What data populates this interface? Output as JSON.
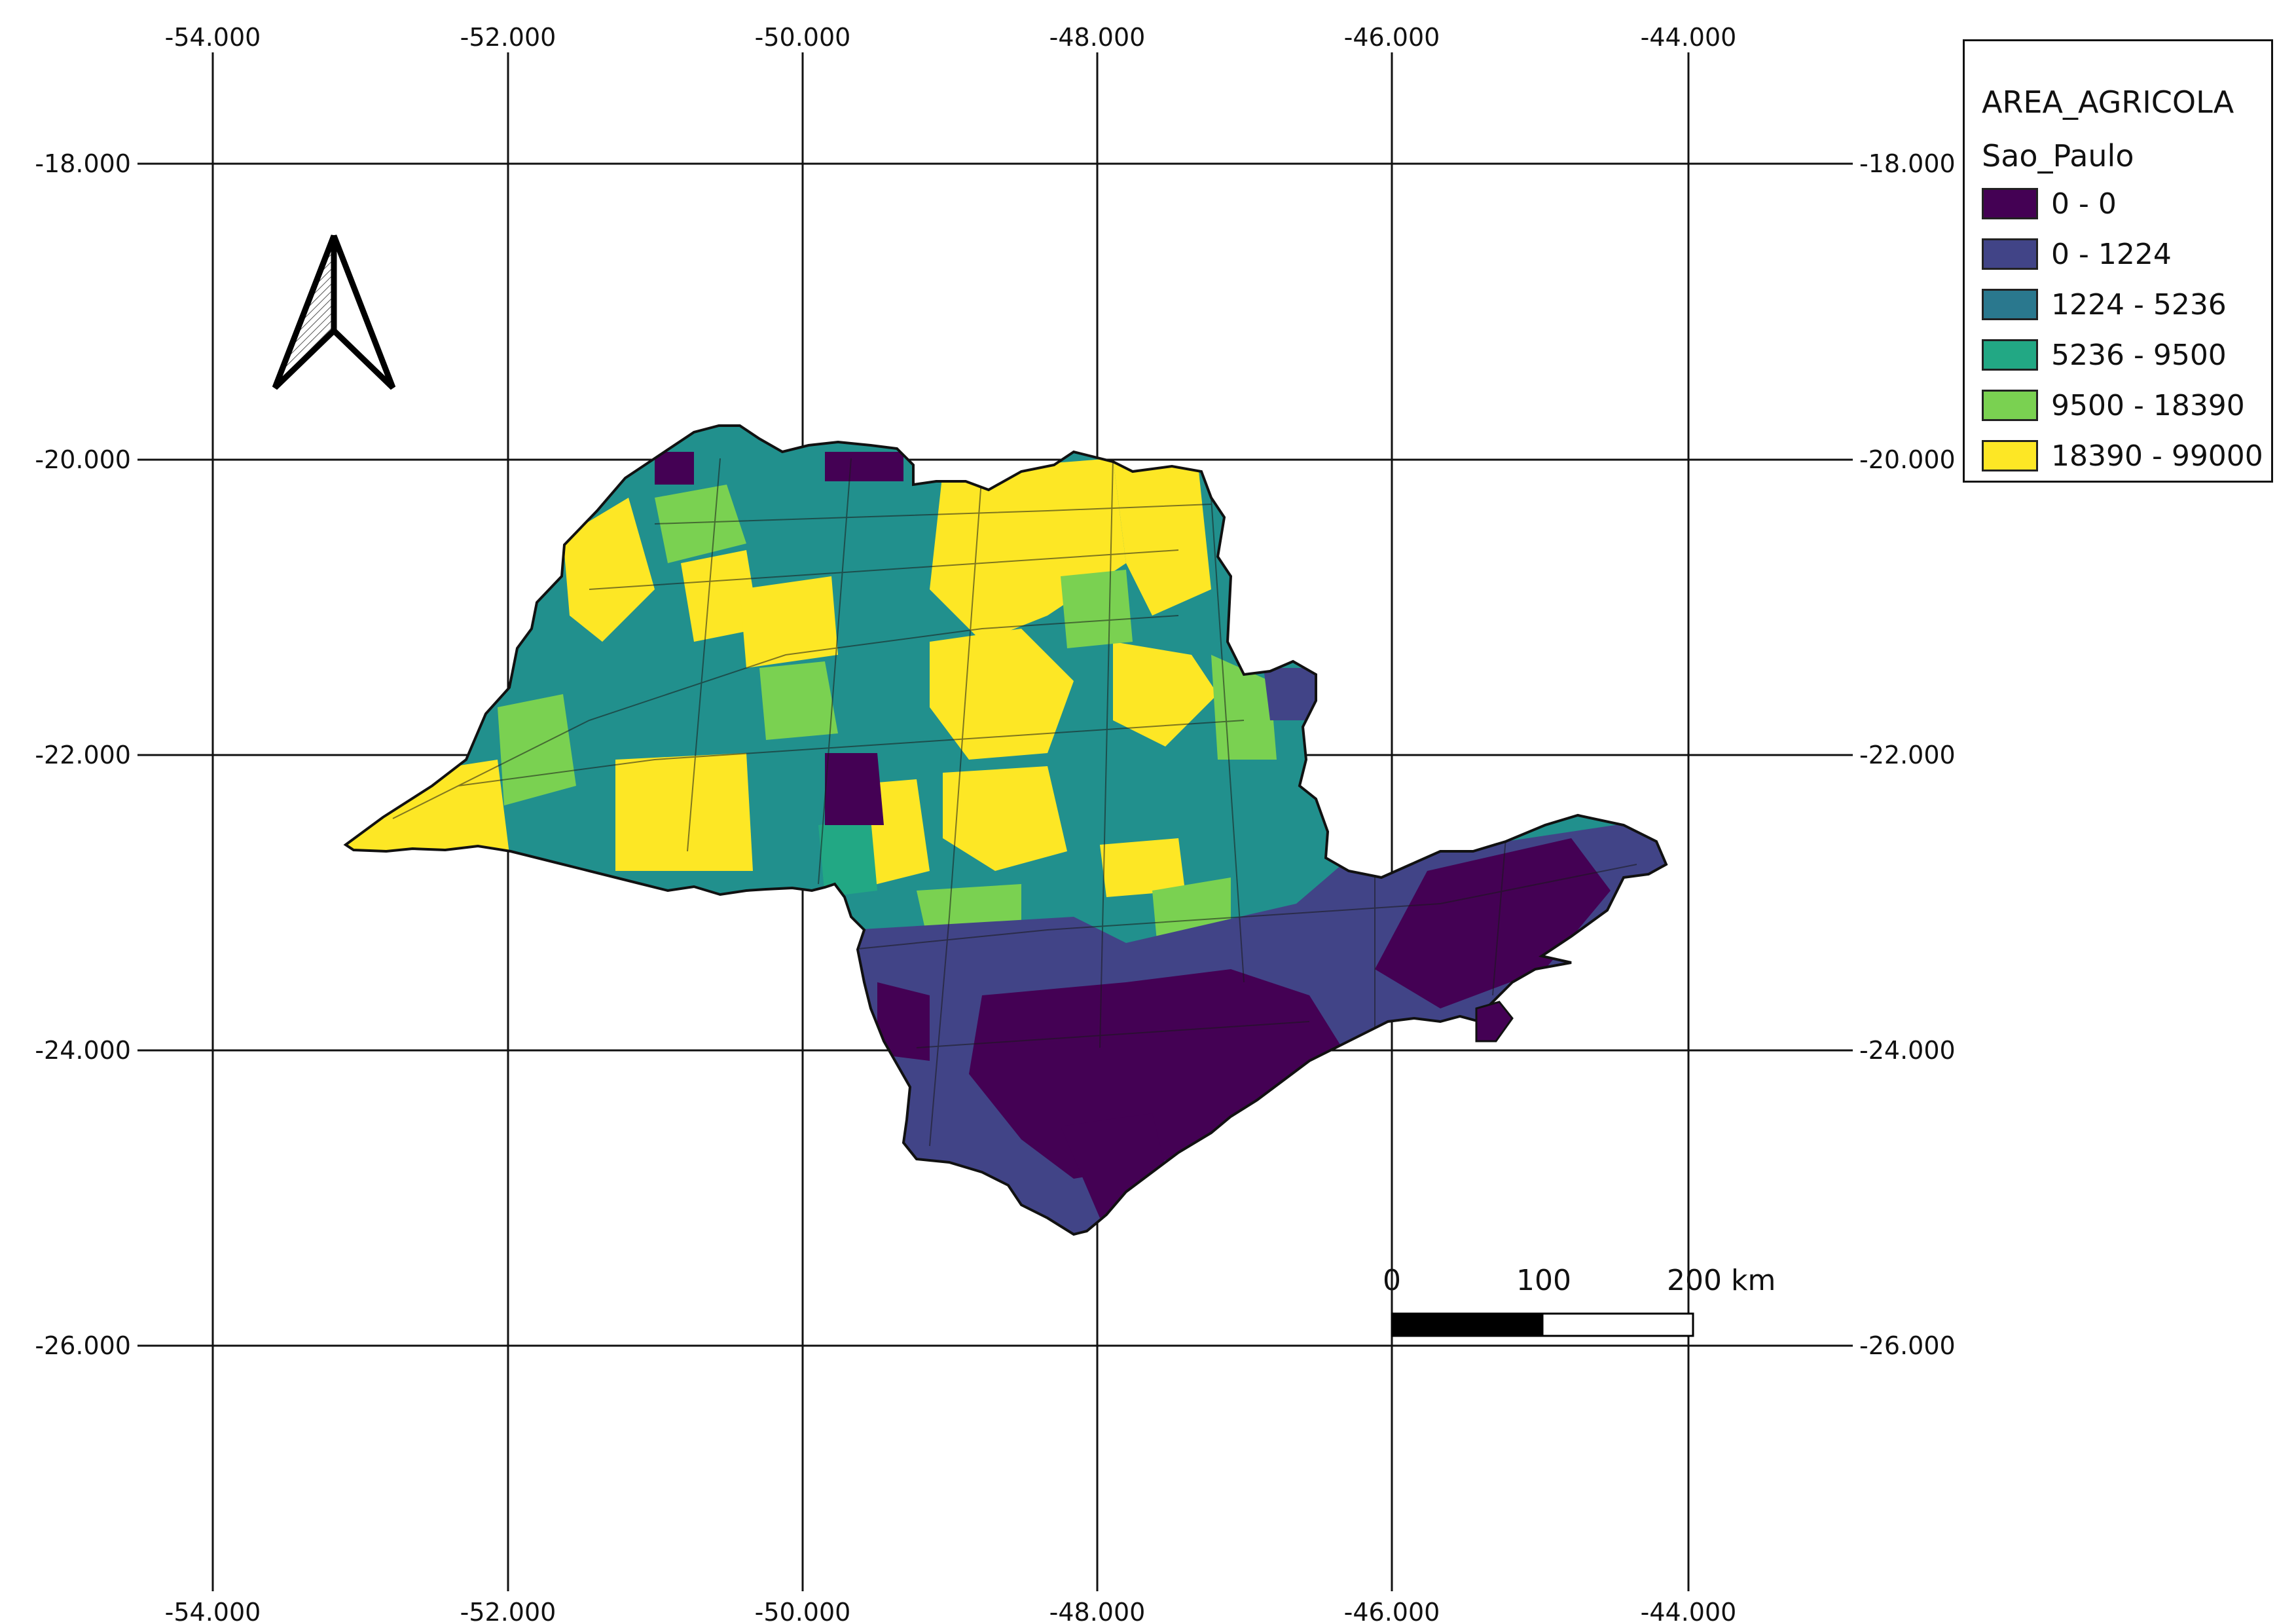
{
  "map": {
    "x_ticks": [
      "-54.000",
      "-52.000",
      "-50.000",
      "-48.000",
      "-46.000",
      "-44.000"
    ],
    "y_ticks": [
      "-18.000",
      "-20.000",
      "-22.000",
      "-24.000",
      "-26.000"
    ]
  },
  "legend": {
    "title": "AREA_AGRICOLA",
    "layer": "Sao_Paulo",
    "classes": [
      {
        "label": "0 - 0",
        "color": "#440154"
      },
      {
        "label": "0 - 1224",
        "color": "#414487"
      },
      {
        "label": "1224 - 5236",
        "color": "#2a788e"
      },
      {
        "label": "5236 - 9500",
        "color": "#22a884"
      },
      {
        "label": "9500 - 18390",
        "color": "#7ad151"
      },
      {
        "label": "18390 - 99000",
        "color": "#fde725"
      }
    ]
  },
  "scale_bar": {
    "labels": [
      "0",
      "100",
      "200 km"
    ]
  }
}
